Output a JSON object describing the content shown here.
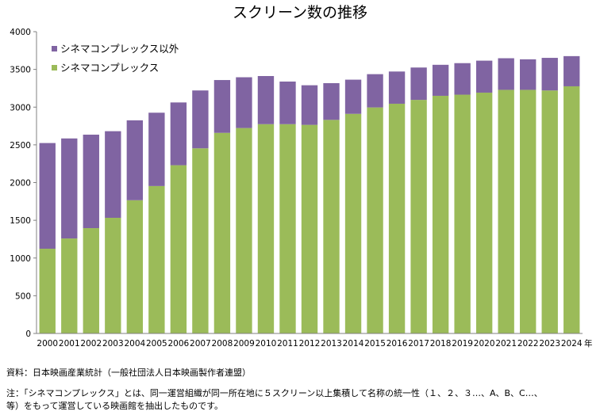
{
  "chart_data": {
    "type": "bar",
    "stacked": true,
    "title": "スクリーン数の推移",
    "xlabel": "年",
    "ylabel": "",
    "ylim": [
      0,
      4000
    ],
    "yticks": [
      0,
      500,
      1000,
      1500,
      2000,
      2500,
      3000,
      3500,
      4000
    ],
    "grid": false,
    "legend_position": "top-left",
    "categories": [
      "2000",
      "2001",
      "2002",
      "2003",
      "2004",
      "2005",
      "2006",
      "2007",
      "2008",
      "2009",
      "2010",
      "2011",
      "2012",
      "2013",
      "2014",
      "2015",
      "2016",
      "2017",
      "2018",
      "2019",
      "2020",
      "2021",
      "2022",
      "2023",
      "2024"
    ],
    "series": [
      {
        "name": "シネマコンプレックス",
        "color": "#9BBB59",
        "values": [
          1123,
          1259,
          1396,
          1533,
          1766,
          1954,
          2230,
          2454,
          2659,
          2723,
          2774,
          2774,
          2765,
          2831,
          2911,
          2996,
          3045,
          3096,
          3150,
          3165,
          3192,
          3229,
          3229,
          3221,
          3276
        ]
      },
      {
        "name": "シネマコンプレックス以外",
        "color": "#8064A2",
        "values": [
          1401,
          1326,
          1239,
          1148,
          1059,
          972,
          832,
          767,
          700,
          673,
          638,
          565,
          525,
          487,
          453,
          441,
          427,
          429,
          411,
          418,
          424,
          419,
          405,
          432,
          400
        ]
      }
    ]
  },
  "notes": {
    "source": "資料：日本映画産業統計（一般社団法人日本映画製作者連盟）",
    "note_line1": "注：「シネマコンプレックス」とは、同一運営組織が同一所在地に５スクリーン以上集積して名称の統一性（１、２、３…、A、B、C…、",
    "note_line2": "等）をもって運営している映画館を抽出したものです。"
  }
}
